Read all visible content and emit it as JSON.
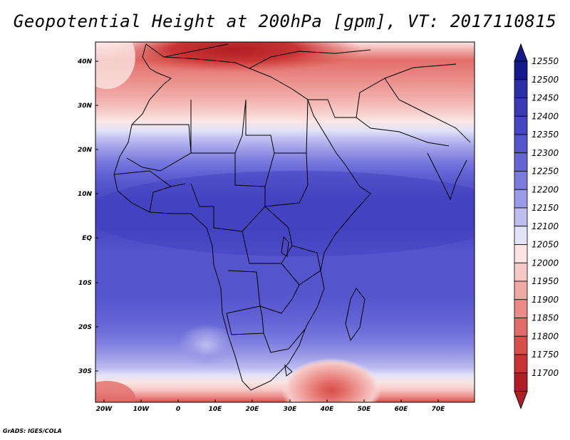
{
  "title": "Geopotential Height at 200hPa [gpm], VT: 2017110815",
  "credit": "GrADS: IGES/COLA",
  "lat_labels": [
    "40N",
    "30N",
    "20N",
    "10N",
    "EQ",
    "10S",
    "20S",
    "30S"
  ],
  "lon_labels": [
    "20W",
    "10W",
    "0",
    "10E",
    "20E",
    "30E",
    "40E",
    "50E",
    "60E",
    "70E"
  ],
  "colorbar": {
    "levels": [
      12550,
      12500,
      12450,
      12400,
      12350,
      12300,
      12250,
      12200,
      12150,
      12100,
      12050,
      12000,
      11950,
      11900,
      11850,
      11800,
      11750,
      11700
    ],
    "colors": [
      "#141a8c",
      "#2a2fa6",
      "#3a3ab6",
      "#4646c3",
      "#5454cc",
      "#6565d6",
      "#7b7bde",
      "#9a9ae6",
      "#bdbdf0",
      "#e2e2f8",
      "#fbe6e4",
      "#f6c9c6",
      "#f0aaa6",
      "#ea8b86",
      "#e26d68",
      "#d84e4a",
      "#c83433",
      "#b01e24"
    ]
  },
  "map": {
    "variable": "Geopotential Height",
    "level": "200hPa",
    "units": "gpm",
    "valid_time": "2017110815",
    "lon_range": [
      -22,
      80
    ],
    "lat_range": [
      -37,
      45
    ]
  }
}
